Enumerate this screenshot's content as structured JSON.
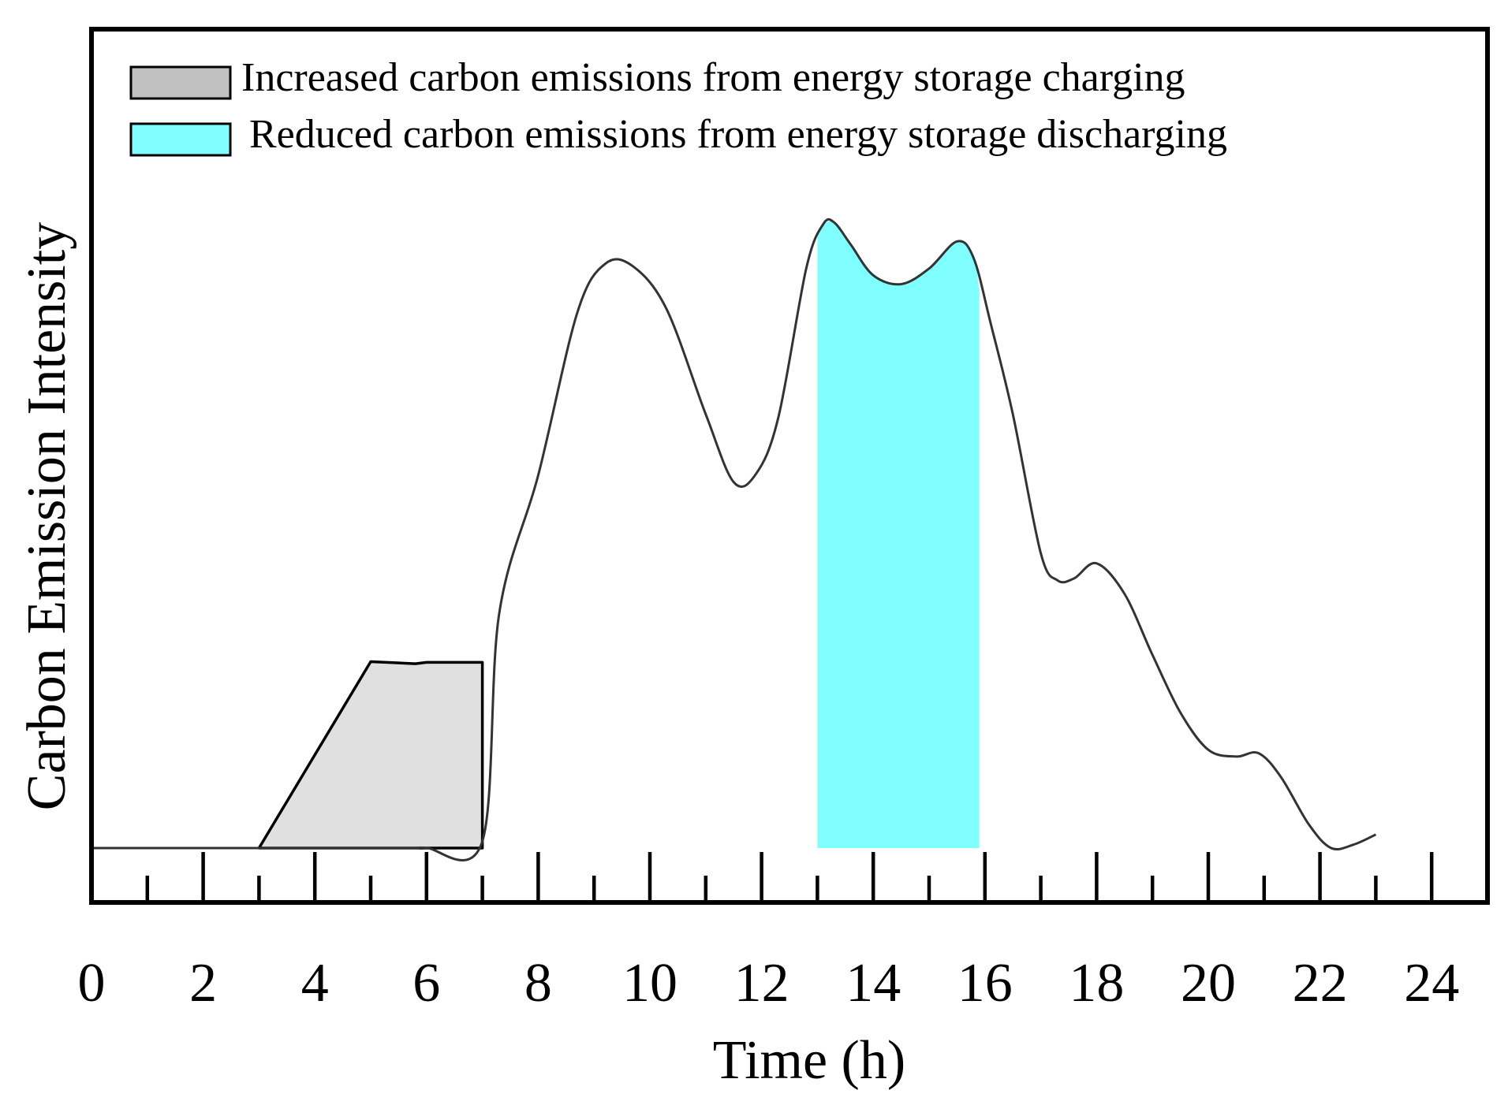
{
  "chart_data": {
    "type": "area",
    "title": "",
    "xlabel": "Time (h)",
    "ylabel": "Carbon Emission Intensity",
    "xlim": [
      0,
      25
    ],
    "ylim": [
      0,
      100
    ],
    "x_tick_labels": [
      "0",
      "2",
      "4",
      "6",
      "8",
      "10",
      "12",
      "14",
      "16",
      "18",
      "20",
      "22",
      "24"
    ],
    "x_tick_values": [
      0,
      2,
      4,
      6,
      8,
      10,
      12,
      14,
      16,
      18,
      20,
      22,
      24
    ],
    "minor_tick_values": [
      1,
      3,
      5,
      7,
      9,
      11,
      13,
      15,
      17,
      19,
      21,
      23
    ],
    "grid": false,
    "legend": {
      "placement": "top-left",
      "entries": [
        {
          "label": "Increased carbon emissions from energy storage charging",
          "color": "#c0c0c0"
        },
        {
          "label": "Reduced carbon emissions from energy storage discharging",
          "color": "#7fffff"
        }
      ]
    },
    "series": [
      {
        "name": "Carbon Emission Intensity",
        "x": [
          0,
          1,
          2,
          3,
          4,
          5,
          5.8,
          6,
          7,
          7.3,
          8,
          8.7,
          9.2,
          9.7,
          10.3,
          11,
          11.5,
          11.9,
          12.3,
          12.8,
          13.1,
          13.3,
          13.6,
          14.0,
          14.5,
          15.0,
          15.5,
          15.8,
          16.1,
          16.5,
          17.0,
          17.3,
          17.6,
          18.0,
          18.5,
          19.0,
          19.5,
          20.0,
          20.5,
          20.9,
          21.3,
          21.8,
          22.2,
          22.6,
          23.0
        ],
        "values": [
          0,
          0,
          0,
          0,
          0,
          0,
          0,
          0,
          1.0,
          34.5,
          55.0,
          79.0,
          86.2,
          85.8,
          79.5,
          64.0,
          54.0,
          55.2,
          63.5,
          85.5,
          92.0,
          92.3,
          89.0,
          84.5,
          83.2,
          85.5,
          89.5,
          87.0,
          77.5,
          64.0,
          43.5,
          39.5,
          39.8,
          42.0,
          37.5,
          28.5,
          20.0,
          14.5,
          13.5,
          14.0,
          10.5,
          3.5,
          0.0,
          0.5,
          2.0
        ]
      },
      {
        "name": "Increased carbon emissions from energy storage charging",
        "x": [
          3,
          5,
          5.8,
          6,
          7
        ],
        "values": [
          0,
          27.5,
          27.2,
          27.4,
          27.4
        ],
        "baseline": 0,
        "fill": "#e0e0e0"
      },
      {
        "name": "Reduced carbon emissions from energy storage discharging",
        "x": [
          13.0,
          13.1,
          13.3,
          13.6,
          14.0,
          14.5,
          15.0,
          15.5,
          15.8,
          15.9
        ],
        "values": [
          90.5,
          92.0,
          92.3,
          89.0,
          84.5,
          83.2,
          85.5,
          89.5,
          87.0,
          82.0
        ],
        "baseline": 0,
        "fill": "#7fffff"
      }
    ]
  }
}
